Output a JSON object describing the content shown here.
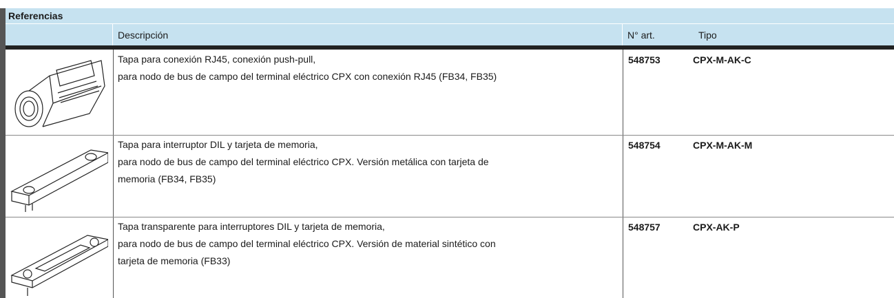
{
  "header": {
    "title": "Referencias"
  },
  "columns": [
    "Descripción",
    "N° art.",
    "Tipo"
  ],
  "rows": [
    {
      "description": [
        "Tapa para conexión RJ45, conexión push-pull,",
        "para nodo de bus de campo del terminal eléctrico CPX con conexión RJ45 (FB34, FB35)"
      ],
      "art": "548753",
      "tipo": "CPX-M-AK-C"
    },
    {
      "description": [
        "Tapa para interruptor DIL y tarjeta de memoria,",
        "para nodo de bus de campo del terminal eléctrico CPX. Versión metálica con tarjeta de",
        "memoria (FB34, FB35)"
      ],
      "art": "548754",
      "tipo": "CPX-M-AK-M"
    },
    {
      "description": [
        "Tapa transparente para interruptores DIL y tarjeta de memoria,",
        "para nodo de bus de campo del terminal eléctrico CPX. Versión de material sintético con",
        "tarjeta de memoria (FB33)"
      ],
      "art": "548757",
      "tipo": "CPX-AK-P"
    }
  ]
}
